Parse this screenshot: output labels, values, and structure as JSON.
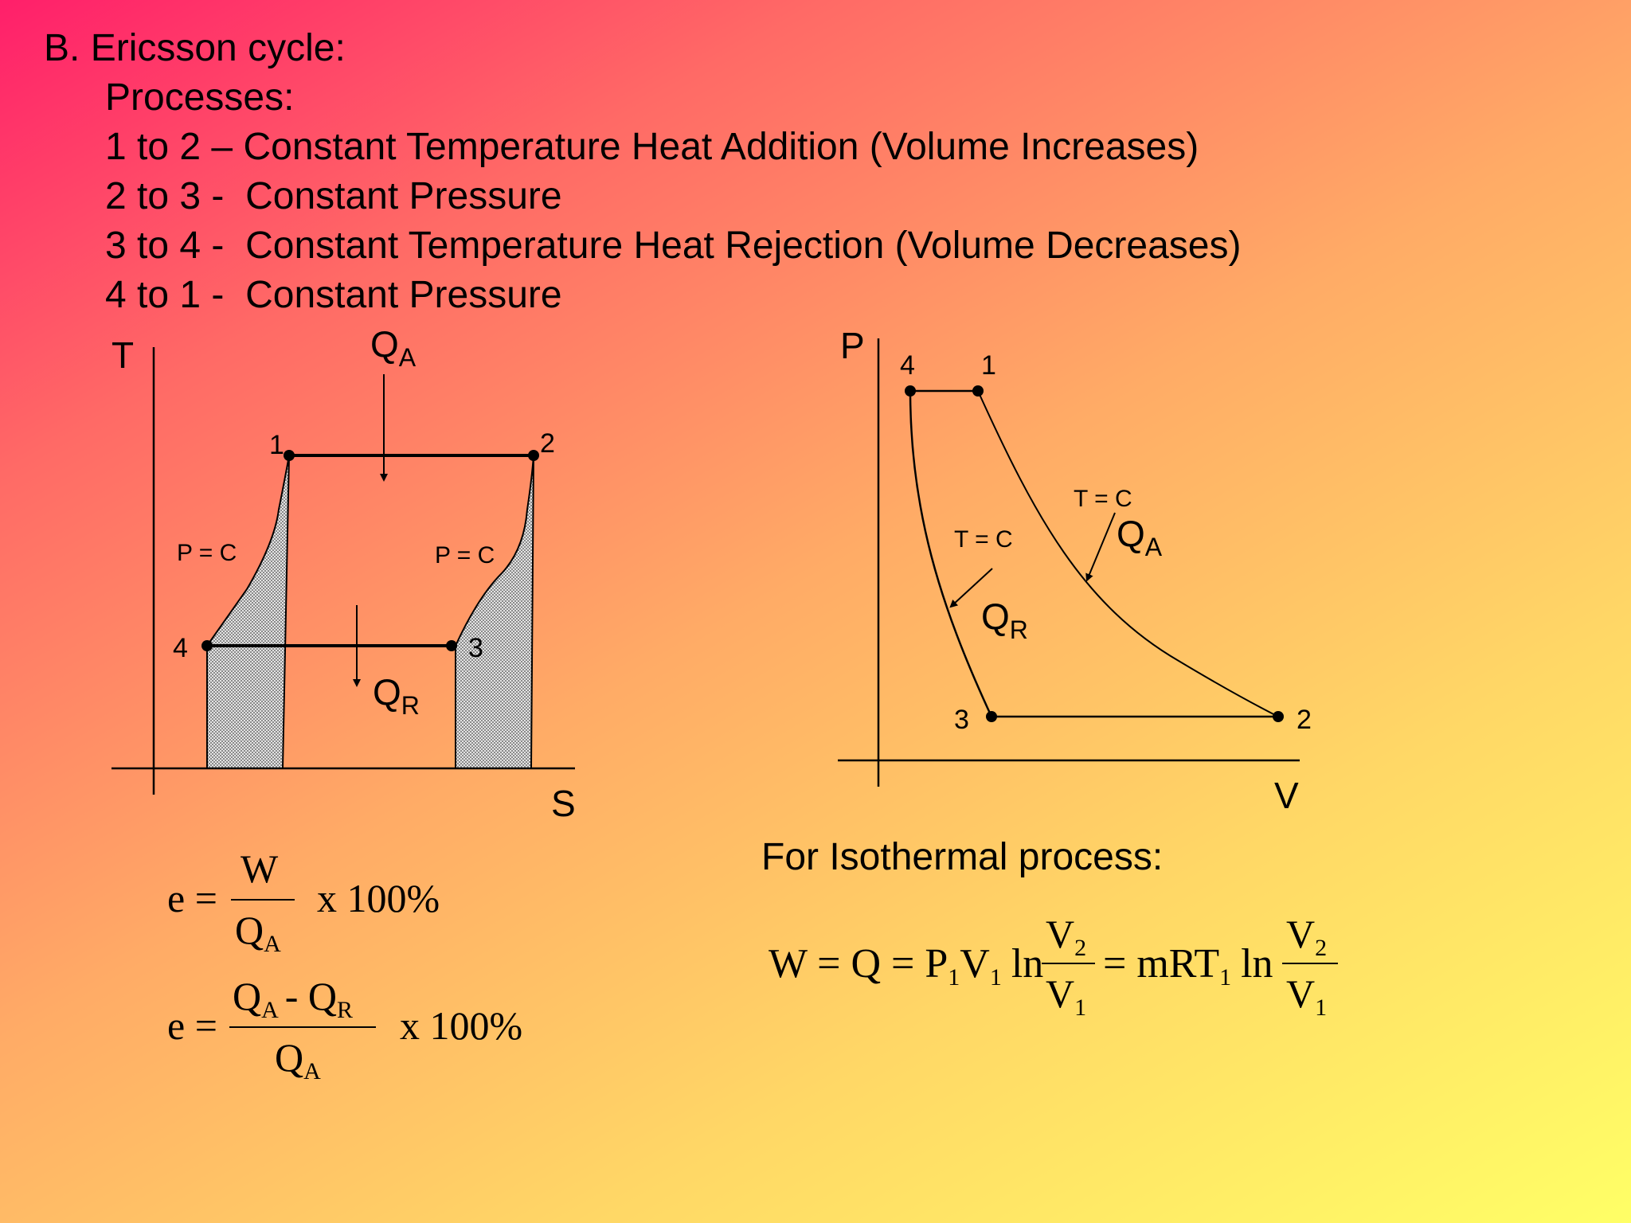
{
  "heading": "B.  Ericsson cycle:",
  "processes_label": "Processes:",
  "processes": [
    "1 to 2 – Constant Temperature Heat Addition (Volume Increases)",
    "2 to 3 -  Constant Pressure",
    "3 to 4 -  Constant Temperature Heat Rejection (Volume Decreases)",
    "4 to 1 -  Constant Pressure"
  ],
  "ts_diagram": {
    "y_axis": "T",
    "x_axis": "S",
    "heat_in": "Q",
    "heat_in_sub": "A",
    "heat_out": "Q",
    "heat_out_sub": "R",
    "points": [
      "1",
      "2",
      "3",
      "4"
    ],
    "left_curve": "P = C",
    "right_curve": "P = C"
  },
  "pv_diagram": {
    "y_axis": "P",
    "x_axis": "V",
    "points": [
      "4",
      "1",
      "3",
      "2"
    ],
    "upper_curve": "T = C",
    "lower_curve": "T = C",
    "heat_in": "Q",
    "heat_in_sub": "A",
    "heat_out": "Q",
    "heat_out_sub": "R"
  },
  "isothermal_title": "For Isothermal process:",
  "eq1": {
    "lhs": "e =",
    "num": "W",
    "den": "Q",
    "den_sub": "A",
    "tail": "x 100%"
  },
  "eq2": {
    "lhs": "e =",
    "num_a": "Q",
    "num_a_sub": "A",
    "minus": "- Q",
    "num_b_sub": "R",
    "den": "Q",
    "den_sub": "A",
    "tail": "x  100%"
  },
  "eq3": {
    "lhs": "W = Q = P",
    "p_sub": "1",
    "v": "V",
    "v_sub": "1",
    "ln": "ln",
    "frac_num": "V",
    "frac_num_sub": "2",
    "frac_den": "V",
    "frac_den_sub": "1",
    "mid": "= mRT",
    "t_sub": "1",
    "ln2": "ln",
    "frac2_num": "V",
    "frac2_num_sub": "2",
    "frac2_den": "V",
    "frac2_den_sub": "1"
  }
}
